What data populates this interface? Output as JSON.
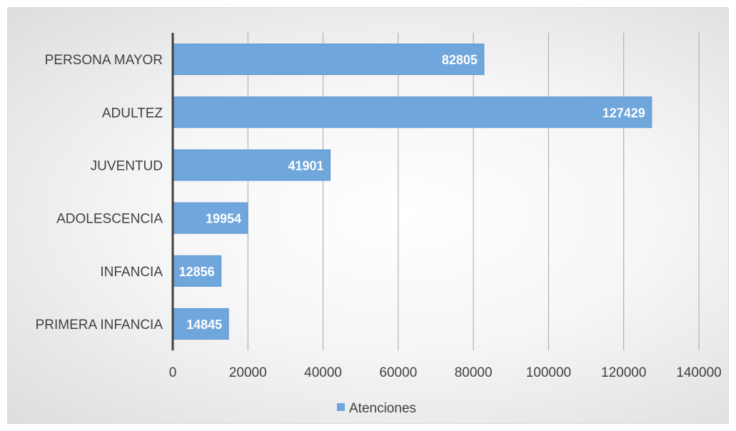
{
  "chart_data": {
    "type": "bar",
    "orientation": "horizontal",
    "categories": [
      "PERSONA MAYOR",
      "ADULTEZ",
      "JUVENTUD",
      "ADOLESCENCIA",
      "INFANCIA",
      "PRIMERA INFANCIA"
    ],
    "series": [
      {
        "name": "Atenciones",
        "values": [
          82805,
          127429,
          41901,
          19954,
          12856,
          14845
        ],
        "labels": [
          "82805",
          "127429",
          "41901",
          "19954",
          "12856",
          "14845"
        ]
      }
    ],
    "xlim": [
      0,
      140000
    ],
    "xticks": [
      0,
      20000,
      40000,
      60000,
      80000,
      100000,
      120000,
      140000
    ],
    "xtick_labels": [
      "0",
      "20000",
      "40000",
      "60000",
      "80000",
      "100000",
      "120000",
      "140000"
    ],
    "grid": "vertical",
    "legend_position": "bottom",
    "bar_color": "#6fa6dc",
    "gridline_color": "#a6a6a6",
    "axis_color": "#404040"
  }
}
